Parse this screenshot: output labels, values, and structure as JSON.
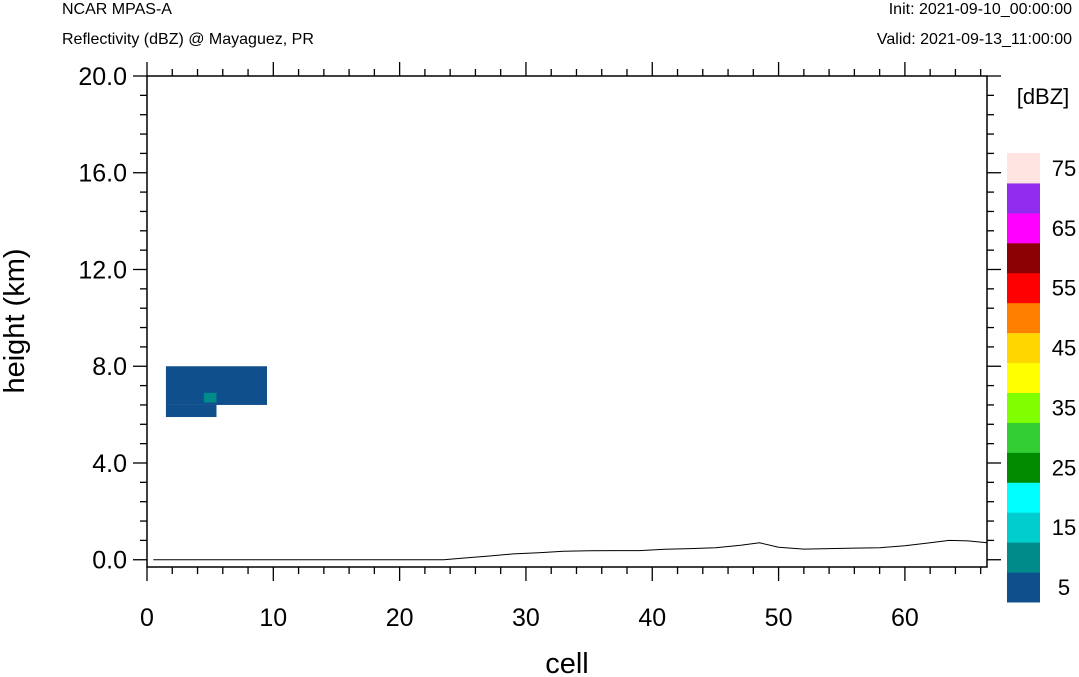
{
  "header": {
    "model": "NCAR MPAS-A",
    "title": "Reflectivity (dBZ) @ Mayaguez, PR",
    "init": "Init: 2021-09-10_00:00:00",
    "valid": "Valid: 2021-09-13_11:00:00"
  },
  "chart_data": {
    "type": "heatmap",
    "title": "Reflectivity (dBZ) @ Mayaguez, PR",
    "xlabel": "cell",
    "ylabel": "height (km)",
    "xlim": [
      0,
      66.5
    ],
    "ylim": [
      -0.3,
      20.0
    ],
    "xticks": [
      0,
      10,
      20,
      30,
      40,
      50,
      60
    ],
    "xtick_labels": [
      "0",
      "10",
      "20",
      "30",
      "40",
      "50",
      "60"
    ],
    "yticks": [
      0,
      4,
      8,
      12,
      16,
      20
    ],
    "ytick_labels": [
      "0.0",
      "4.0",
      "8.0",
      "12.0",
      "16.0",
      "20.0"
    ],
    "cells": [
      {
        "x0": 1.5,
        "x1": 9.5,
        "y0": 6.4,
        "y1": 8.0,
        "dbz": 5,
        "color": "#0f4f8c"
      },
      {
        "x0": 1.5,
        "x1": 5.5,
        "y0": 5.9,
        "y1": 6.4,
        "dbz": 5,
        "color": "#0f4f8c"
      },
      {
        "x0": 4.5,
        "x1": 5.5,
        "y0": 6.5,
        "y1": 6.9,
        "dbz": 10,
        "color": "#008b8b"
      }
    ],
    "terrain": {
      "x": [
        0.5,
        23.5,
        25,
        27,
        29,
        31,
        33,
        35,
        37,
        39,
        41,
        43,
        45,
        47,
        48.5,
        50,
        52,
        54,
        56,
        58,
        60,
        62,
        63.5,
        65,
        66.5
      ],
      "y": [
        0.0,
        0.0,
        0.07,
        0.15,
        0.24,
        0.29,
        0.35,
        0.37,
        0.38,
        0.38,
        0.43,
        0.46,
        0.5,
        0.6,
        0.7,
        0.52,
        0.44,
        0.46,
        0.48,
        0.5,
        0.58,
        0.7,
        0.8,
        0.78,
        0.7
      ]
    },
    "colorbar": {
      "label": "[dBZ]",
      "levels": [
        5,
        10,
        15,
        20,
        25,
        30,
        35,
        40,
        45,
        50,
        55,
        60,
        65,
        70,
        75
      ],
      "tick_labels": [
        "5",
        "15",
        "25",
        "35",
        "45",
        "55",
        "65",
        "75"
      ],
      "colors": [
        "#0f4f8c",
        "#008b8b",
        "#00cdcd",
        "#00ffff",
        "#008b00",
        "#32cd32",
        "#7fff00",
        "#ffff00",
        "#ffd700",
        "#ff7f00",
        "#ff0000",
        "#8b0000",
        "#ff00ff",
        "#912cee",
        "#ffe4e1"
      ]
    }
  }
}
